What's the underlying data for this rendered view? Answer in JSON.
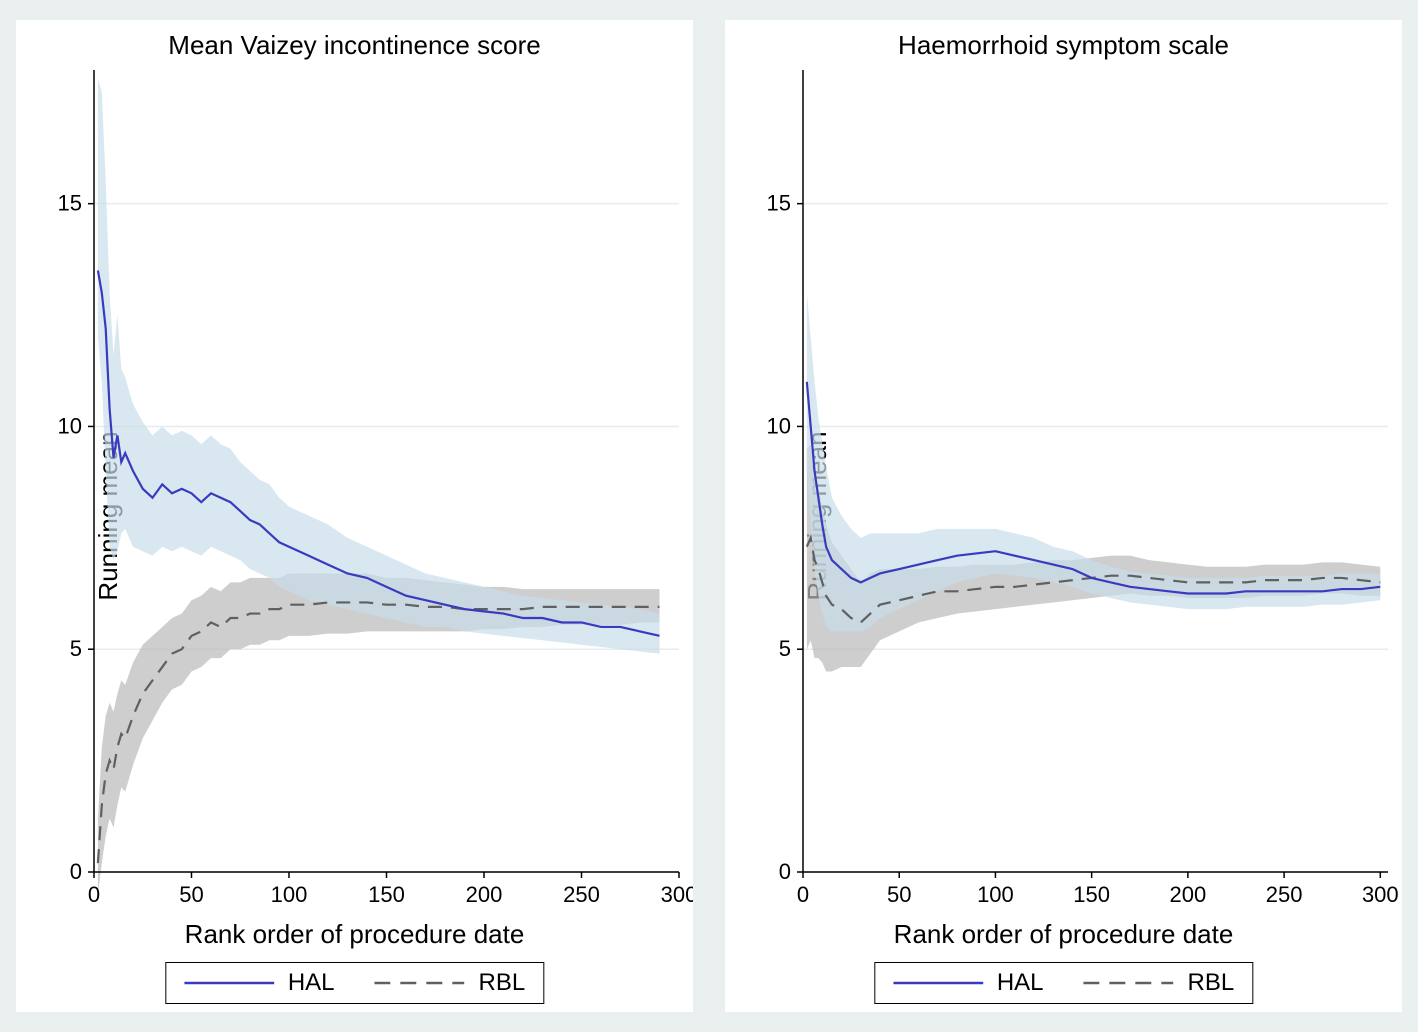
{
  "background_color": "#eaf0f0",
  "plot_background": "#ffffff",
  "grid_color": "#e5eded",
  "axis_color": "#000000",
  "series_colors": {
    "hal_line": "#3a3abf",
    "hal_band": "#c9ddea",
    "rbl_line": "#606060",
    "rbl_band": "#b9b9b9"
  },
  "line_widths": {
    "hal": 2.2,
    "rbl": 2.2
  },
  "font_family": "Arial",
  "title_fontsize": 26,
  "axis_label_fontsize": 26,
  "tick_fontsize": 22,
  "panels": [
    {
      "title": "Mean Vaizey incontinence score",
      "ylabel": "Running mean",
      "xlabel": "Rank order of procedure date",
      "xlim": [
        0,
        300
      ],
      "ylim": [
        0,
        18
      ],
      "xticks": [
        0,
        50,
        100,
        150,
        200,
        250,
        300
      ],
      "yticks": [
        0,
        5,
        10,
        15
      ],
      "hal": {
        "x": [
          2,
          4,
          6,
          8,
          10,
          12,
          14,
          16,
          20,
          25,
          30,
          35,
          40,
          45,
          50,
          55,
          60,
          65,
          70,
          75,
          80,
          85,
          90,
          95,
          100,
          110,
          120,
          130,
          140,
          150,
          160,
          170,
          180,
          190,
          200,
          210,
          220,
          230,
          240,
          250,
          260,
          270,
          280,
          290
        ],
        "y": [
          13.5,
          13.0,
          12.2,
          10.4,
          9.3,
          9.8,
          9.2,
          9.4,
          9.0,
          8.6,
          8.4,
          8.7,
          8.5,
          8.6,
          8.5,
          8.3,
          8.5,
          8.4,
          8.3,
          8.1,
          7.9,
          7.8,
          7.6,
          7.4,
          7.3,
          7.1,
          6.9,
          6.7,
          6.6,
          6.4,
          6.2,
          6.1,
          6.0,
          5.9,
          5.85,
          5.8,
          5.7,
          5.7,
          5.6,
          5.6,
          5.5,
          5.5,
          5.4,
          5.3
        ],
        "lo": [
          12.0,
          11.0,
          9.0,
          7.3,
          7.0,
          7.2,
          7.6,
          7.7,
          7.3,
          7.2,
          7.1,
          7.3,
          7.2,
          7.3,
          7.2,
          7.1,
          7.3,
          7.2,
          7.1,
          7.0,
          6.8,
          6.7,
          6.6,
          6.4,
          6.3,
          6.1,
          6.0,
          5.9,
          5.8,
          5.7,
          5.6,
          5.5,
          5.5,
          5.4,
          5.35,
          5.3,
          5.25,
          5.2,
          5.15,
          5.1,
          5.05,
          5.0,
          4.95,
          4.9
        ],
        "hi": [
          17.8,
          17.5,
          15.5,
          13.0,
          11.6,
          12.5,
          11.3,
          11.1,
          10.5,
          10.1,
          9.8,
          10.0,
          9.8,
          9.9,
          9.8,
          9.6,
          9.8,
          9.6,
          9.5,
          9.2,
          9.0,
          8.8,
          8.7,
          8.4,
          8.2,
          8.0,
          7.8,
          7.5,
          7.3,
          7.1,
          6.9,
          6.7,
          6.6,
          6.5,
          6.4,
          6.3,
          6.2,
          6.15,
          6.1,
          6.05,
          6.0,
          5.95,
          5.9,
          5.8
        ]
      },
      "rbl": {
        "x": [
          2,
          4,
          6,
          8,
          10,
          12,
          14,
          16,
          20,
          25,
          30,
          35,
          40,
          45,
          50,
          55,
          60,
          65,
          70,
          75,
          80,
          85,
          90,
          95,
          100,
          110,
          120,
          130,
          140,
          150,
          160,
          170,
          180,
          190,
          200,
          210,
          220,
          230,
          240,
          250,
          260,
          270,
          280,
          290
        ],
        "y": [
          0.2,
          1.5,
          2.2,
          2.5,
          2.3,
          2.8,
          3.1,
          3.0,
          3.5,
          4.0,
          4.3,
          4.6,
          4.9,
          5.0,
          5.3,
          5.4,
          5.6,
          5.5,
          5.7,
          5.7,
          5.8,
          5.8,
          5.9,
          5.9,
          6.0,
          6.0,
          6.05,
          6.05,
          6.05,
          6.0,
          6.0,
          5.95,
          5.95,
          5.9,
          5.9,
          5.9,
          5.9,
          5.95,
          5.95,
          5.95,
          5.95,
          5.95,
          5.95,
          5.95
        ],
        "lo": [
          -0.5,
          0.2,
          0.8,
          1.2,
          1.0,
          1.5,
          1.9,
          1.8,
          2.4,
          3.0,
          3.4,
          3.8,
          4.1,
          4.2,
          4.5,
          4.6,
          4.8,
          4.8,
          5.0,
          5.0,
          5.1,
          5.1,
          5.2,
          5.2,
          5.3,
          5.3,
          5.35,
          5.35,
          5.4,
          5.4,
          5.4,
          5.4,
          5.4,
          5.4,
          5.45,
          5.45,
          5.5,
          5.5,
          5.55,
          5.55,
          5.55,
          5.55,
          5.6,
          5.6
        ],
        "hi": [
          1.2,
          2.8,
          3.5,
          3.8,
          3.6,
          4.0,
          4.3,
          4.2,
          4.7,
          5.1,
          5.3,
          5.5,
          5.7,
          5.8,
          6.1,
          6.2,
          6.4,
          6.3,
          6.5,
          6.5,
          6.6,
          6.6,
          6.6,
          6.6,
          6.7,
          6.7,
          6.7,
          6.7,
          6.7,
          6.6,
          6.6,
          6.55,
          6.5,
          6.45,
          6.4,
          6.4,
          6.35,
          6.35,
          6.35,
          6.35,
          6.35,
          6.35,
          6.35,
          6.35
        ]
      }
    },
    {
      "title": "Haemorrhoid symptom scale",
      "ylabel": "Running mean",
      "xlabel": "Rank order of procedure date",
      "xlim": [
        0,
        304
      ],
      "ylim": [
        0,
        18
      ],
      "xticks": [
        0,
        50,
        100,
        150,
        200,
        250,
        300
      ],
      "yticks": [
        0,
        5,
        10,
        15
      ],
      "hal": {
        "x": [
          2,
          4,
          6,
          8,
          10,
          12,
          15,
          20,
          25,
          30,
          35,
          40,
          50,
          60,
          70,
          80,
          90,
          100,
          110,
          120,
          130,
          140,
          150,
          160,
          170,
          180,
          190,
          200,
          210,
          220,
          230,
          240,
          250,
          260,
          270,
          280,
          290,
          300
        ],
        "y": [
          11.0,
          10.0,
          9.0,
          8.4,
          7.8,
          7.3,
          7.0,
          6.8,
          6.6,
          6.5,
          6.6,
          6.7,
          6.8,
          6.9,
          7.0,
          7.1,
          7.15,
          7.2,
          7.1,
          7.0,
          6.9,
          6.8,
          6.6,
          6.5,
          6.4,
          6.35,
          6.3,
          6.25,
          6.25,
          6.25,
          6.3,
          6.3,
          6.3,
          6.3,
          6.3,
          6.35,
          6.35,
          6.4
        ],
        "lo": [
          9.0,
          7.8,
          6.8,
          6.2,
          5.8,
          5.5,
          5.4,
          5.4,
          5.4,
          5.4,
          5.5,
          5.7,
          5.9,
          6.1,
          6.3,
          6.5,
          6.6,
          6.7,
          6.65,
          6.6,
          6.5,
          6.4,
          6.25,
          6.15,
          6.05,
          6.0,
          5.95,
          5.9,
          5.9,
          5.9,
          5.95,
          5.95,
          5.95,
          5.95,
          6.0,
          6.0,
          6.05,
          6.1
        ],
        "hi": [
          13.0,
          12.0,
          11.0,
          10.2,
          9.6,
          9.1,
          8.4,
          8.0,
          7.7,
          7.5,
          7.6,
          7.6,
          7.6,
          7.6,
          7.7,
          7.7,
          7.7,
          7.7,
          7.6,
          7.5,
          7.3,
          7.2,
          7.0,
          6.85,
          6.75,
          6.7,
          6.65,
          6.6,
          6.6,
          6.6,
          6.6,
          6.65,
          6.65,
          6.65,
          6.65,
          6.7,
          6.7,
          6.7
        ]
      },
      "rbl": {
        "x": [
          2,
          4,
          6,
          8,
          10,
          12,
          15,
          20,
          25,
          30,
          35,
          40,
          50,
          60,
          70,
          80,
          90,
          100,
          110,
          120,
          130,
          140,
          150,
          160,
          170,
          180,
          190,
          200,
          210,
          220,
          230,
          240,
          250,
          260,
          270,
          280,
          290,
          300
        ],
        "y": [
          7.3,
          7.5,
          7.0,
          6.8,
          6.5,
          6.2,
          6.0,
          5.9,
          5.7,
          5.6,
          5.8,
          6.0,
          6.1,
          6.2,
          6.3,
          6.3,
          6.35,
          6.4,
          6.4,
          6.45,
          6.5,
          6.55,
          6.6,
          6.65,
          6.65,
          6.6,
          6.55,
          6.5,
          6.5,
          6.5,
          6.5,
          6.55,
          6.55,
          6.55,
          6.6,
          6.6,
          6.55,
          6.5
        ],
        "lo": [
          5.0,
          5.2,
          4.8,
          4.8,
          4.7,
          4.5,
          4.5,
          4.6,
          4.6,
          4.6,
          4.9,
          5.2,
          5.4,
          5.6,
          5.7,
          5.8,
          5.85,
          5.9,
          5.95,
          6.0,
          6.05,
          6.1,
          6.15,
          6.2,
          6.25,
          6.2,
          6.2,
          6.15,
          6.15,
          6.15,
          6.15,
          6.2,
          6.2,
          6.2,
          6.25,
          6.25,
          6.2,
          6.2
        ],
        "hi": [
          9.5,
          9.6,
          9.0,
          8.6,
          8.2,
          7.8,
          7.4,
          7.1,
          6.8,
          6.5,
          6.7,
          6.8,
          6.8,
          6.8,
          6.85,
          6.85,
          6.9,
          6.9,
          6.9,
          6.95,
          7.0,
          7.0,
          7.05,
          7.1,
          7.1,
          7.0,
          6.95,
          6.9,
          6.85,
          6.85,
          6.85,
          6.9,
          6.9,
          6.9,
          6.95,
          6.95,
          6.9,
          6.85
        ]
      }
    }
  ],
  "legend": {
    "hal_label": "HAL",
    "rbl_label": "RBL"
  }
}
